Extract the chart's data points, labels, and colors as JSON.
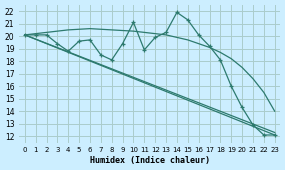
{
  "xlabel": "Humidex (Indice chaleur)",
  "bg_color": "#cceeff",
  "grid_color": "#aacccc",
  "line_color": "#2d7a6e",
  "xlim": [
    -0.5,
    23.5
  ],
  "ylim": [
    11.5,
    22.5
  ],
  "xticks": [
    0,
    1,
    2,
    3,
    4,
    5,
    6,
    7,
    8,
    9,
    10,
    11,
    12,
    13,
    14,
    15,
    16,
    17,
    18,
    19,
    20,
    21,
    22,
    23
  ],
  "yticks": [
    12,
    13,
    14,
    15,
    16,
    17,
    18,
    19,
    20,
    21,
    22
  ],
  "line1_x": [
    0,
    1,
    2,
    3,
    4,
    5,
    6,
    7,
    8,
    9,
    10,
    11,
    12,
    13,
    14,
    15,
    16,
    17,
    18,
    19,
    20,
    21,
    22,
    23
  ],
  "line1_y": [
    20.1,
    20.1,
    20.1,
    19.4,
    18.8,
    19.6,
    19.7,
    18.5,
    18.1,
    19.4,
    21.1,
    18.9,
    19.9,
    20.3,
    21.9,
    21.3,
    20.1,
    19.2,
    18.1,
    16.0,
    14.3,
    12.9,
    12.1,
    12.1
  ],
  "line2_x": [
    0,
    1,
    2,
    3,
    4,
    5,
    6,
    7,
    8,
    9,
    10,
    11,
    12,
    13,
    14,
    15,
    16,
    17,
    18,
    19,
    20,
    21,
    22,
    23
  ],
  "line2_y": [
    20.1,
    20.2,
    20.3,
    20.4,
    20.5,
    20.55,
    20.6,
    20.55,
    20.5,
    20.45,
    20.4,
    20.3,
    20.2,
    20.1,
    19.9,
    19.7,
    19.4,
    19.1,
    18.7,
    18.2,
    17.5,
    16.6,
    15.5,
    14.0
  ],
  "line3_x": [
    0,
    23
  ],
  "line3_y": [
    20.1,
    12.1
  ],
  "line4_x": [
    0,
    23
  ],
  "line4_y": [
    20.1,
    12.3
  ]
}
